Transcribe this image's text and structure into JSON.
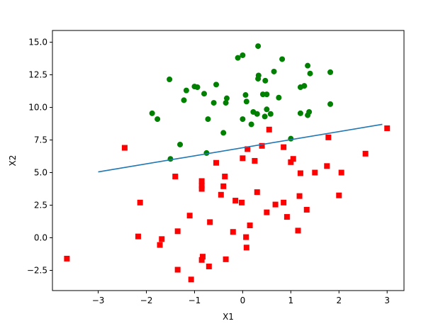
{
  "chart_data": {
    "type": "scatter",
    "title": "",
    "xlabel": "X1",
    "ylabel": "X2",
    "xlim": [
      -3.95,
      3.35
    ],
    "ylim": [
      -4.05,
      15.9
    ],
    "x_ticks": [
      -3,
      -2,
      -1,
      0,
      1,
      2,
      3
    ],
    "y_ticks": [
      -2.5,
      0.0,
      2.5,
      5.0,
      7.5,
      10.0,
      12.5,
      15.0
    ],
    "x_tick_labels": [
      "−3",
      "−2",
      "−1",
      "0",
      "1",
      "2",
      "3"
    ],
    "y_tick_labels": [
      "−2.5",
      "0.0",
      "2.5",
      "5.0",
      "7.5",
      "10.0",
      "12.5",
      "15.0"
    ],
    "grid": false,
    "series": [
      {
        "kind": "scatter",
        "marker": "circle",
        "color": "#008000",
        "points": [
          [
            0.32,
            14.7
          ],
          [
            0.0,
            14.0
          ],
          [
            -0.1,
            13.8
          ],
          [
            0.82,
            13.7
          ],
          [
            1.35,
            13.2
          ],
          [
            1.82,
            12.7
          ],
          [
            1.4,
            12.6
          ],
          [
            0.65,
            12.75
          ],
          [
            0.33,
            12.45
          ],
          [
            0.32,
            12.2
          ],
          [
            -1.52,
            12.15
          ],
          [
            0.47,
            12.05
          ],
          [
            -0.55,
            11.75
          ],
          [
            -1.0,
            11.6
          ],
          [
            -0.94,
            11.55
          ],
          [
            1.28,
            11.65
          ],
          [
            1.2,
            11.55
          ],
          [
            -1.17,
            11.3
          ],
          [
            -0.8,
            11.05
          ],
          [
            0.42,
            11.0
          ],
          [
            0.5,
            11.0
          ],
          [
            0.06,
            10.95
          ],
          [
            0.75,
            10.75
          ],
          [
            -0.33,
            10.7
          ],
          [
            -1.22,
            10.55
          ],
          [
            -0.6,
            10.35
          ],
          [
            -0.35,
            10.35
          ],
          [
            0.08,
            10.45
          ],
          [
            1.82,
            10.25
          ],
          [
            0.5,
            9.85
          ],
          [
            0.22,
            9.65
          ],
          [
            0.3,
            9.5
          ],
          [
            0.58,
            9.5
          ],
          [
            0.46,
            9.3
          ],
          [
            1.38,
            9.65
          ],
          [
            1.35,
            9.4
          ],
          [
            1.2,
            9.55
          ],
          [
            0.0,
            9.1
          ],
          [
            -0.72,
            9.1
          ],
          [
            -1.88,
            9.55
          ],
          [
            -1.77,
            9.1
          ],
          [
            0.18,
            8.7
          ],
          [
            -0.4,
            8.05
          ],
          [
            1.0,
            7.6
          ],
          [
            -1.3,
            7.15
          ],
          [
            -0.75,
            6.5
          ],
          [
            -1.5,
            6.05
          ]
        ]
      },
      {
        "kind": "scatter",
        "marker": "square",
        "color": "#ff0000",
        "points": [
          [
            0.55,
            8.3
          ],
          [
            3.0,
            8.4
          ],
          [
            1.78,
            7.7
          ],
          [
            0.4,
            7.05
          ],
          [
            0.85,
            6.95
          ],
          [
            -2.45,
            6.9
          ],
          [
            0.1,
            6.8
          ],
          [
            2.55,
            6.45
          ],
          [
            1.05,
            6.05
          ],
          [
            1.0,
            5.8
          ],
          [
            0.25,
            5.9
          ],
          [
            -0.55,
            5.75
          ],
          [
            0.0,
            6.1
          ],
          [
            1.75,
            5.5
          ],
          [
            1.2,
            4.95
          ],
          [
            1.5,
            5.0
          ],
          [
            2.05,
            5.0
          ],
          [
            -1.4,
            4.7
          ],
          [
            -0.37,
            4.7
          ],
          [
            -0.85,
            4.35
          ],
          [
            -0.85,
            4.0
          ],
          [
            -0.85,
            3.75
          ],
          [
            -0.4,
            3.95
          ],
          [
            -0.45,
            3.3
          ],
          [
            0.3,
            3.5
          ],
          [
            1.18,
            3.2
          ],
          [
            2.0,
            3.25
          ],
          [
            -0.15,
            2.85
          ],
          [
            -0.02,
            2.7
          ],
          [
            0.68,
            2.55
          ],
          [
            0.85,
            2.7
          ],
          [
            -2.13,
            2.7
          ],
          [
            1.33,
            2.15
          ],
          [
            0.5,
            1.95
          ],
          [
            0.92,
            1.6
          ],
          [
            -1.1,
            1.7
          ],
          [
            -0.68,
            1.2
          ],
          [
            0.15,
            0.95
          ],
          [
            1.15,
            0.55
          ],
          [
            -1.35,
            0.5
          ],
          [
            -0.2,
            0.45
          ],
          [
            -2.17,
            0.1
          ],
          [
            0.07,
            0.05
          ],
          [
            -1.68,
            -0.1
          ],
          [
            -1.72,
            -0.55
          ],
          [
            0.08,
            -0.75
          ],
          [
            -0.83,
            -1.45
          ],
          [
            -0.85,
            -1.7
          ],
          [
            -0.35,
            -1.65
          ],
          [
            -3.65,
            -1.6
          ],
          [
            -0.7,
            -2.2
          ],
          [
            -1.35,
            -2.45
          ],
          [
            -1.07,
            -3.2
          ]
        ]
      },
      {
        "kind": "line",
        "color": "#1f77b4",
        "points": [
          [
            -3.0,
            5.05
          ],
          [
            2.9,
            8.7
          ]
        ]
      }
    ]
  }
}
